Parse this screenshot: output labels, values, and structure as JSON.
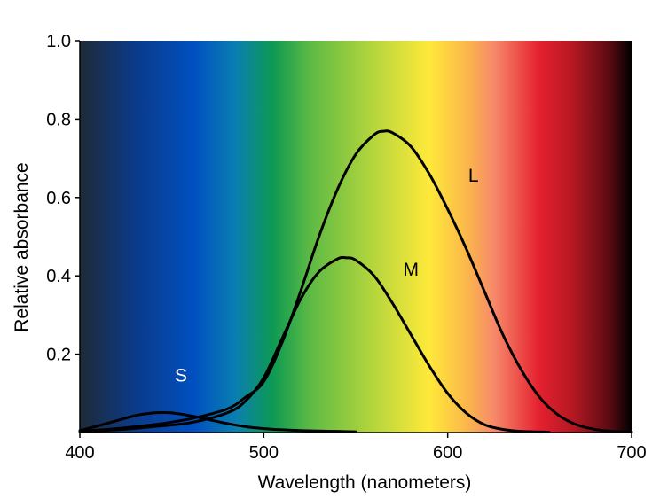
{
  "chart_data": {
    "type": "line",
    "title": "",
    "xlabel": "Wavelength (nanometers)",
    "ylabel": "Relative absorbance",
    "xlim": [
      400,
      700
    ],
    "ylim": [
      0,
      1.0
    ],
    "x_ticks": [
      400,
      500,
      600,
      700
    ],
    "x_tick_labels": [
      "400",
      "500",
      "600",
      "700"
    ],
    "y_ticks": [
      0.2,
      0.4,
      0.6,
      0.8,
      1.0
    ],
    "y_tick_labels": [
      "0.2",
      "0.4",
      "0.6",
      "0.8",
      "1.0"
    ],
    "grid": false,
    "legend": "none",
    "background": "visible spectrum gradient",
    "background_colors": [
      {
        "wavelength": 400,
        "color": "#1f2a36"
      },
      {
        "wavelength": 430,
        "color": "#0b3a8a"
      },
      {
        "wavelength": 462,
        "color": "#0050c0"
      },
      {
        "wavelength": 485,
        "color": "#0a7fb0"
      },
      {
        "wavelength": 505,
        "color": "#0d9a52"
      },
      {
        "wavelength": 525,
        "color": "#5cba44"
      },
      {
        "wavelength": 560,
        "color": "#b6d63c"
      },
      {
        "wavelength": 590,
        "color": "#ffe93a"
      },
      {
        "wavelength": 610,
        "color": "#fbb84a"
      },
      {
        "wavelength": 625,
        "color": "#f78a6a"
      },
      {
        "wavelength": 650,
        "color": "#e4202f"
      },
      {
        "wavelength": 668,
        "color": "#b51822"
      },
      {
        "wavelength": 688,
        "color": "#5a0b12"
      },
      {
        "wavelength": 700,
        "color": "#000000"
      }
    ],
    "series": [
      {
        "name": "S",
        "label_color": "#ffffff",
        "label_at": [
          455,
          0.13
        ],
        "x": [
          400,
          410,
          420,
          430,
          440,
          445,
          450,
          460,
          470,
          480,
          490,
          500,
          510,
          520,
          530,
          540,
          550
        ],
        "y": [
          0.005,
          0.017,
          0.03,
          0.043,
          0.05,
          0.051,
          0.05,
          0.043,
          0.033,
          0.023,
          0.015,
          0.01,
          0.007,
          0.005,
          0.004,
          0.003,
          0.002
        ]
      },
      {
        "name": "M",
        "label_color": "#000000",
        "label_at": [
          580,
          0.4
        ],
        "x": [
          400,
          420,
          440,
          460,
          480,
          490,
          500,
          510,
          520,
          530,
          540,
          545,
          550,
          560,
          570,
          580,
          590,
          600,
          610,
          620,
          630,
          640,
          655
        ],
        "y": [
          0.003,
          0.007,
          0.015,
          0.025,
          0.05,
          0.08,
          0.14,
          0.24,
          0.34,
          0.41,
          0.443,
          0.446,
          0.44,
          0.4,
          0.33,
          0.25,
          0.17,
          0.1,
          0.05,
          0.02,
          0.008,
          0.003,
          0.001
        ]
      },
      {
        "name": "L",
        "label_color": "#000000",
        "label_at": [
          614,
          0.64
        ],
        "x": [
          400,
          420,
          440,
          460,
          480,
          490,
          500,
          510,
          520,
          530,
          540,
          550,
          560,
          565,
          570,
          580,
          590,
          600,
          610,
          620,
          630,
          640,
          650,
          660,
          670,
          680,
          690,
          700
        ],
        "y": [
          0.003,
          0.01,
          0.02,
          0.035,
          0.06,
          0.09,
          0.13,
          0.23,
          0.36,
          0.5,
          0.62,
          0.71,
          0.76,
          0.769,
          0.765,
          0.73,
          0.66,
          0.57,
          0.47,
          0.36,
          0.25,
          0.16,
          0.09,
          0.045,
          0.02,
          0.008,
          0.003,
          0.001
        ]
      }
    ]
  }
}
